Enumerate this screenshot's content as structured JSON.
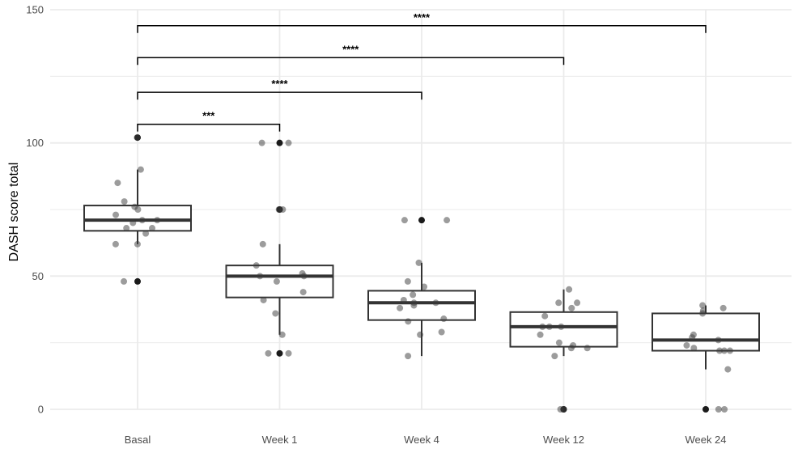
{
  "chart_data": {
    "type": "boxplot",
    "title": "",
    "xlabel": "",
    "ylabel": "DASH score total",
    "ylim": [
      0,
      150
    ],
    "yticks": [
      0,
      50,
      100,
      150
    ],
    "grid": true,
    "colors": {
      "grid": "#ebebeb",
      "box": "#333333",
      "point": "#3a3a3a",
      "outlier": "#1a1a1a",
      "bracket": "#000000"
    },
    "categories": [
      "Basal",
      "Week 1",
      "Week 4",
      "Week 12",
      "Week 24"
    ],
    "boxes": [
      {
        "name": "Basal",
        "whisker_low": 62,
        "q1": 67,
        "median": 71,
        "q3": 76.5,
        "whisker_high": 90,
        "outliers": [
          102,
          48
        ],
        "points": [
          102,
          90,
          85,
          78,
          76,
          75,
          73,
          71,
          71,
          70,
          68,
          68,
          66,
          62,
          62,
          48
        ]
      },
      {
        "name": "Week 1",
        "whisker_low": 28,
        "q1": 42,
        "median": 50,
        "q3": 54,
        "whisker_high": 62,
        "outliers": [
          100,
          75,
          21
        ],
        "points": [
          100,
          100,
          75,
          75,
          62,
          54,
          51,
          50,
          50,
          48,
          44,
          41,
          36,
          28,
          21,
          21
        ]
      },
      {
        "name": "Week 4",
        "whisker_low": 20,
        "q1": 33.5,
        "median": 40,
        "q3": 44.5,
        "whisker_high": 55,
        "outliers": [
          71
        ],
        "points": [
          71,
          71,
          55,
          48,
          46,
          43,
          41,
          40,
          40,
          39,
          38,
          34,
          33,
          29,
          28,
          20
        ]
      },
      {
        "name": "Week 12",
        "whisker_low": 20,
        "q1": 23.5,
        "median": 31,
        "q3": 36.5,
        "whisker_high": 45,
        "outliers": [
          0
        ],
        "points": [
          45,
          40,
          40,
          38,
          35,
          31,
          31,
          31,
          28,
          25,
          24,
          23,
          23,
          20,
          0,
          0
        ]
      },
      {
        "name": "Week 24",
        "whisker_low": 15,
        "q1": 22,
        "median": 26,
        "q3": 36,
        "whisker_high": 39,
        "outliers": [
          0
        ],
        "points": [
          39,
          38,
          37,
          36,
          28,
          27,
          26,
          24,
          23,
          22,
          22,
          22,
          15,
          0,
          0
        ]
      }
    ],
    "annotations": [
      {
        "from": "Basal",
        "to": "Week 1",
        "label": "***",
        "y": 107
      },
      {
        "from": "Basal",
        "to": "Week 4",
        "label": "****",
        "y": 119
      },
      {
        "from": "Basal",
        "to": "Week 12",
        "label": "****",
        "y": 132
      },
      {
        "from": "Basal",
        "to": "Week 24",
        "label": "****",
        "y": 144
      }
    ]
  }
}
